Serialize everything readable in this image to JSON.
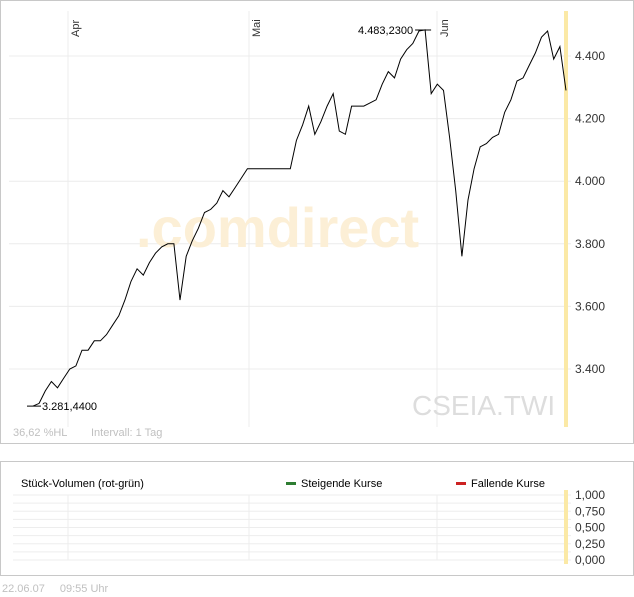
{
  "chart_data": [
    {
      "type": "line",
      "symbol_watermark": "CSEIA.TWI",
      "brand_watermark": ".comdirect",
      "x_month_labels": [
        "Apr",
        "Mai",
        "Jun"
      ],
      "y_ticks": [
        "3.400",
        "3.600",
        "3.800",
        "4.000",
        "4.200",
        "4.400"
      ],
      "ylim": [
        3200,
        4560
      ],
      "min_label": "3.281,4400",
      "max_label": "4.483,2300",
      "min_value": 3281.44,
      "max_value": 4483.23,
      "info_left": "36,62 %HL",
      "info_interval": "Intervall: 1 Tag",
      "series": [
        {
          "values": [
            3281.44,
            3290,
            3330,
            3360,
            3340,
            3370,
            3400,
            3410,
            3460,
            3460,
            3490,
            3490,
            3510,
            3540,
            3570,
            3620,
            3680,
            3720,
            3700,
            3740,
            3770,
            3790,
            3800,
            3800,
            3620,
            3760,
            3810,
            3850,
            3900,
            3910,
            3930,
            3970,
            3950,
            3980,
            4010,
            4040,
            4040,
            4040,
            4040,
            4040,
            4040,
            4040,
            4040,
            4130,
            4180,
            4240,
            4150,
            4190,
            4240,
            4280,
            4160,
            4150,
            4240,
            4240,
            4240,
            4250,
            4260,
            4310,
            4350,
            4330,
            4390,
            4420,
            4440,
            4480,
            4483.23,
            4280,
            4310,
            4290,
            4140,
            3970,
            3760,
            3940,
            4040,
            4110,
            4120,
            4140,
            4150,
            4220,
            4260,
            4320,
            4330,
            4370,
            4410,
            4460,
            4480,
            4390,
            4430,
            4290
          ]
        }
      ]
    },
    {
      "type": "bar",
      "title": "Stück-Volumen (rot-grün)",
      "legend": [
        {
          "label": "Steigende Kurse",
          "color": "#2e7d32"
        },
        {
          "label": "Fallende Kurse",
          "color": "#cc2222"
        }
      ],
      "y_ticks": [
        "1,000",
        "0,750",
        "0,500",
        "0,250",
        "0,000"
      ],
      "ylim": [
        0,
        1
      ]
    }
  ],
  "footer": {
    "date": "22.06.07",
    "time": "09:55 Uhr"
  }
}
